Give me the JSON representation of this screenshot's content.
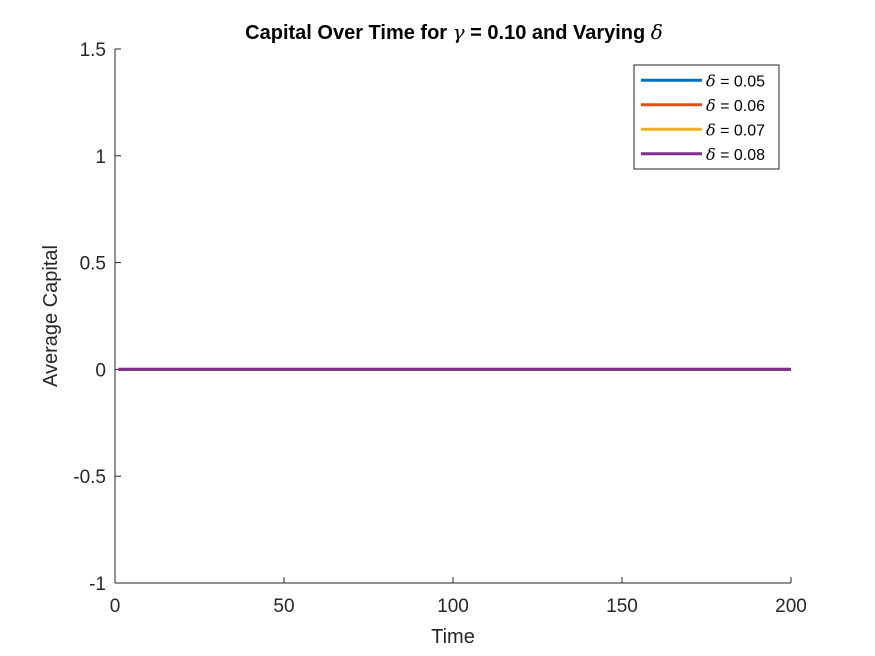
{
  "chart_data": {
    "type": "line",
    "title": {
      "prefix": "Capital Over Time for ",
      "symbol_1": "γ",
      "middle": " = 0.10 and Varying ",
      "symbol_2": "δ"
    },
    "xlabel": "Time",
    "ylabel": "Average Capital",
    "xlim": [
      0,
      200
    ],
    "ylim": [
      -1,
      1.5
    ],
    "xticks": [
      0,
      50,
      100,
      150,
      200
    ],
    "xtick_labels": [
      "0",
      "50",
      "100",
      "150",
      "200"
    ],
    "yticks": [
      -1,
      -0.5,
      0,
      0.5,
      1,
      1.5
    ],
    "ytick_labels": [
      "-1",
      "-0.5",
      "0",
      "0.5",
      "1",
      "1.5"
    ],
    "grid": false,
    "legend_position": "top-right",
    "series": [
      {
        "name": "δ = 0.05",
        "symbol": "δ",
        "value_text": " = 0.05",
        "color": "#0072BD",
        "x": [
          1,
          200
        ],
        "y": [
          0,
          0
        ]
      },
      {
        "name": "δ = 0.06",
        "symbol": "δ",
        "value_text": " = 0.06",
        "color": "#D95319",
        "x": [
          1,
          200
        ],
        "y": [
          0,
          0
        ]
      },
      {
        "name": "δ = 0.07",
        "symbol": "δ",
        "value_text": " = 0.07",
        "color": "#EDB120",
        "x": [
          1,
          200
        ],
        "y": [
          0,
          0
        ]
      },
      {
        "name": "δ = 0.08",
        "symbol": "δ",
        "value_text": " = 0.08",
        "color": "#7E2F8E",
        "x": [
          1,
          200
        ],
        "y": [
          0,
          0
        ]
      }
    ]
  }
}
